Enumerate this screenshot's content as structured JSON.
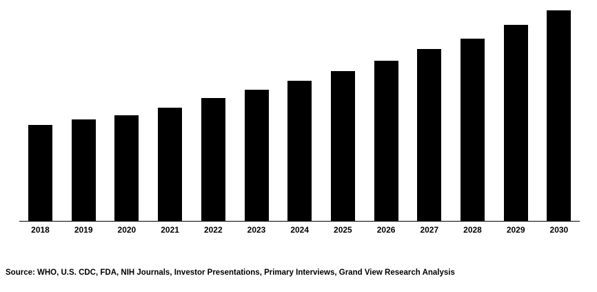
{
  "chart_data": {
    "type": "bar",
    "title": "",
    "categories": [
      "2018",
      "2019",
      "2020",
      "2021",
      "2022",
      "2023",
      "2024",
      "2025",
      "2026",
      "2027",
      "2028",
      "2029",
      "2030"
    ],
    "values": [
      45.6,
      48.2,
      50.2,
      53.8,
      58.5,
      62.3,
      66.6,
      71.1,
      76.1,
      81.6,
      86.6,
      93.1,
      100
    ],
    "xlabel": "",
    "ylabel": "",
    "ylim": [
      0,
      100
    ],
    "value_scale": "relative; y-axis unlabeled, values normalized to 2030 = 100",
    "grid": false,
    "legend": "none",
    "bar_color": "#000000",
    "axis_color": "#000000",
    "background_color": "#ffffff"
  },
  "footer": {
    "source_note": "Source: WHO, U.S. CDC, FDA, NIH Journals, Investor Presentations, Primary Interviews, Grand View Research Analysis"
  }
}
